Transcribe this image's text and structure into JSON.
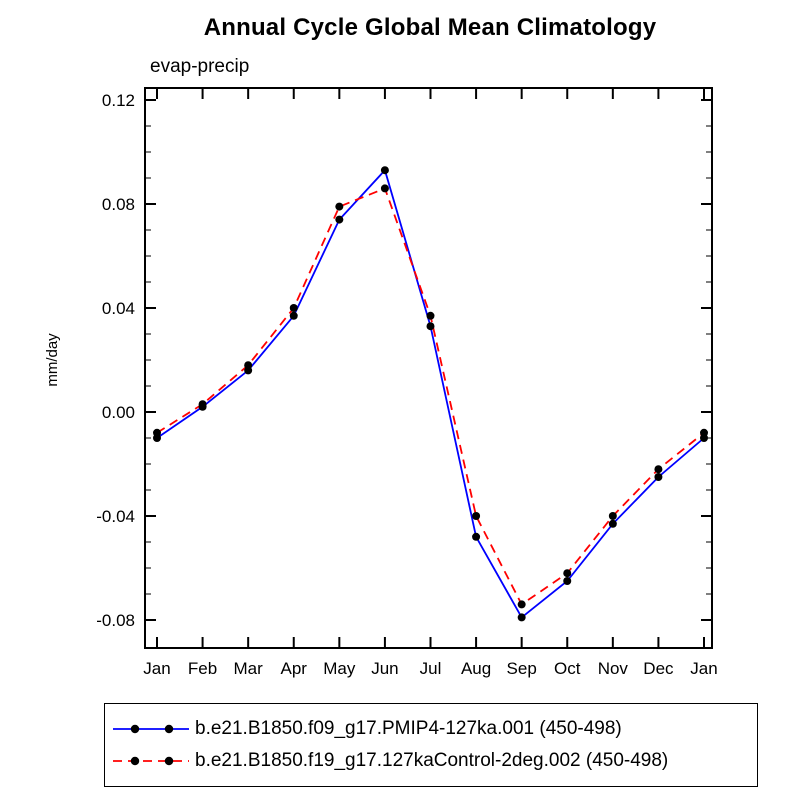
{
  "title": "Annual Cycle Global Mean Climatology",
  "subtitle": "evap-precip",
  "chart_data": {
    "type": "line",
    "title": "Annual Cycle Global Mean Climatology",
    "subtitle": "evap-precip",
    "xlabel": "",
    "ylabel": "mm/day",
    "categories": [
      "Jan",
      "Feb",
      "Mar",
      "Apr",
      "May",
      "Jun",
      "Jul",
      "Aug",
      "Sep",
      "Oct",
      "Nov",
      "Dec",
      "Jan"
    ],
    "ylim": [
      -0.08,
      0.12
    ],
    "yticks": [
      -0.08,
      -0.04,
      0,
      0.04,
      0.08,
      0.12
    ],
    "ytick_minor": 0.01,
    "grid": false,
    "legend_position": "bottom",
    "marker": "filled-circle",
    "marker_color": "#000000",
    "series": [
      {
        "name": "b.e21.B1850.f09_g17.PMIP4-127ka.001 (450-498)",
        "color": "#0000ff",
        "style": "solid",
        "values": [
          -0.01,
          0.002,
          0.016,
          0.037,
          0.074,
          0.093,
          0.033,
          -0.048,
          -0.079,
          -0.065,
          -0.043,
          -0.025,
          -0.01
        ]
      },
      {
        "name": "b.e21.B1850.f19_g17.127kaControl-2deg.002 (450-498)",
        "color": "#ff0000",
        "style": "dashed",
        "values": [
          -0.008,
          0.003,
          0.018,
          0.04,
          0.079,
          0.086,
          0.037,
          -0.04,
          -0.074,
          -0.062,
          -0.04,
          -0.022,
          -0.008
        ]
      }
    ]
  }
}
